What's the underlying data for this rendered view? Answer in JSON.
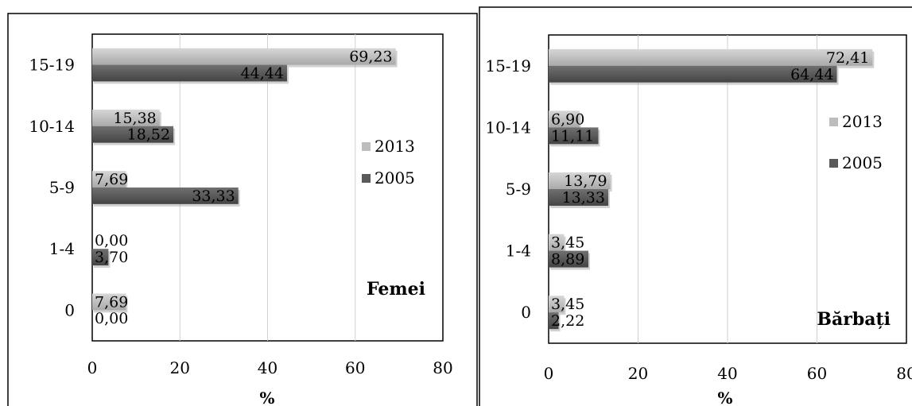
{
  "chart_data": [
    {
      "type": "bar",
      "orientation": "horizontal",
      "panel_label": "Femei",
      "categories": [
        "15-19",
        "10-14",
        "5-9",
        "1-4",
        "0"
      ],
      "series": [
        {
          "name": "2013",
          "values": [
            69.23,
            15.38,
            7.69,
            0.0,
            7.69
          ],
          "labels": [
            "69,23",
            "15,38",
            "7,69",
            "0,00",
            "7,69"
          ],
          "color": "#bdbdbd"
        },
        {
          "name": "2005",
          "values": [
            44.44,
            18.52,
            33.33,
            3.7,
            0.0
          ],
          "labels": [
            "44,44",
            "18,52",
            "33,33",
            "3,70",
            "0,00"
          ],
          "color": "#5a5a5a"
        }
      ],
      "xlim": [
        0,
        80
      ],
      "xticks": [
        "0",
        "20",
        "40",
        "60",
        "80"
      ],
      "xlabel": "%",
      "grid": true,
      "legend": "right"
    },
    {
      "type": "bar",
      "orientation": "horizontal",
      "panel_label": "Bărbați",
      "categories": [
        "15-19",
        "10-14",
        "5-9",
        "1-4",
        "0"
      ],
      "series": [
        {
          "name": "2013",
          "values": [
            72.41,
            6.9,
            13.79,
            3.45,
            3.45
          ],
          "labels": [
            "72,41",
            "6,90",
            "13,79",
            "3,45",
            "3,45"
          ],
          "color": "#bdbdbd"
        },
        {
          "name": "2005",
          "values": [
            64.44,
            11.11,
            13.33,
            8.89,
            2.22
          ],
          "labels": [
            "64,44",
            "11,11",
            "13,33",
            "8,89",
            "2,22"
          ],
          "color": "#5a5a5a"
        }
      ],
      "xlim": [
        0,
        80
      ],
      "xticks": [
        "0",
        "20",
        "40",
        "60",
        "80"
      ],
      "xlabel": "%",
      "grid": true,
      "legend": "right"
    }
  ]
}
